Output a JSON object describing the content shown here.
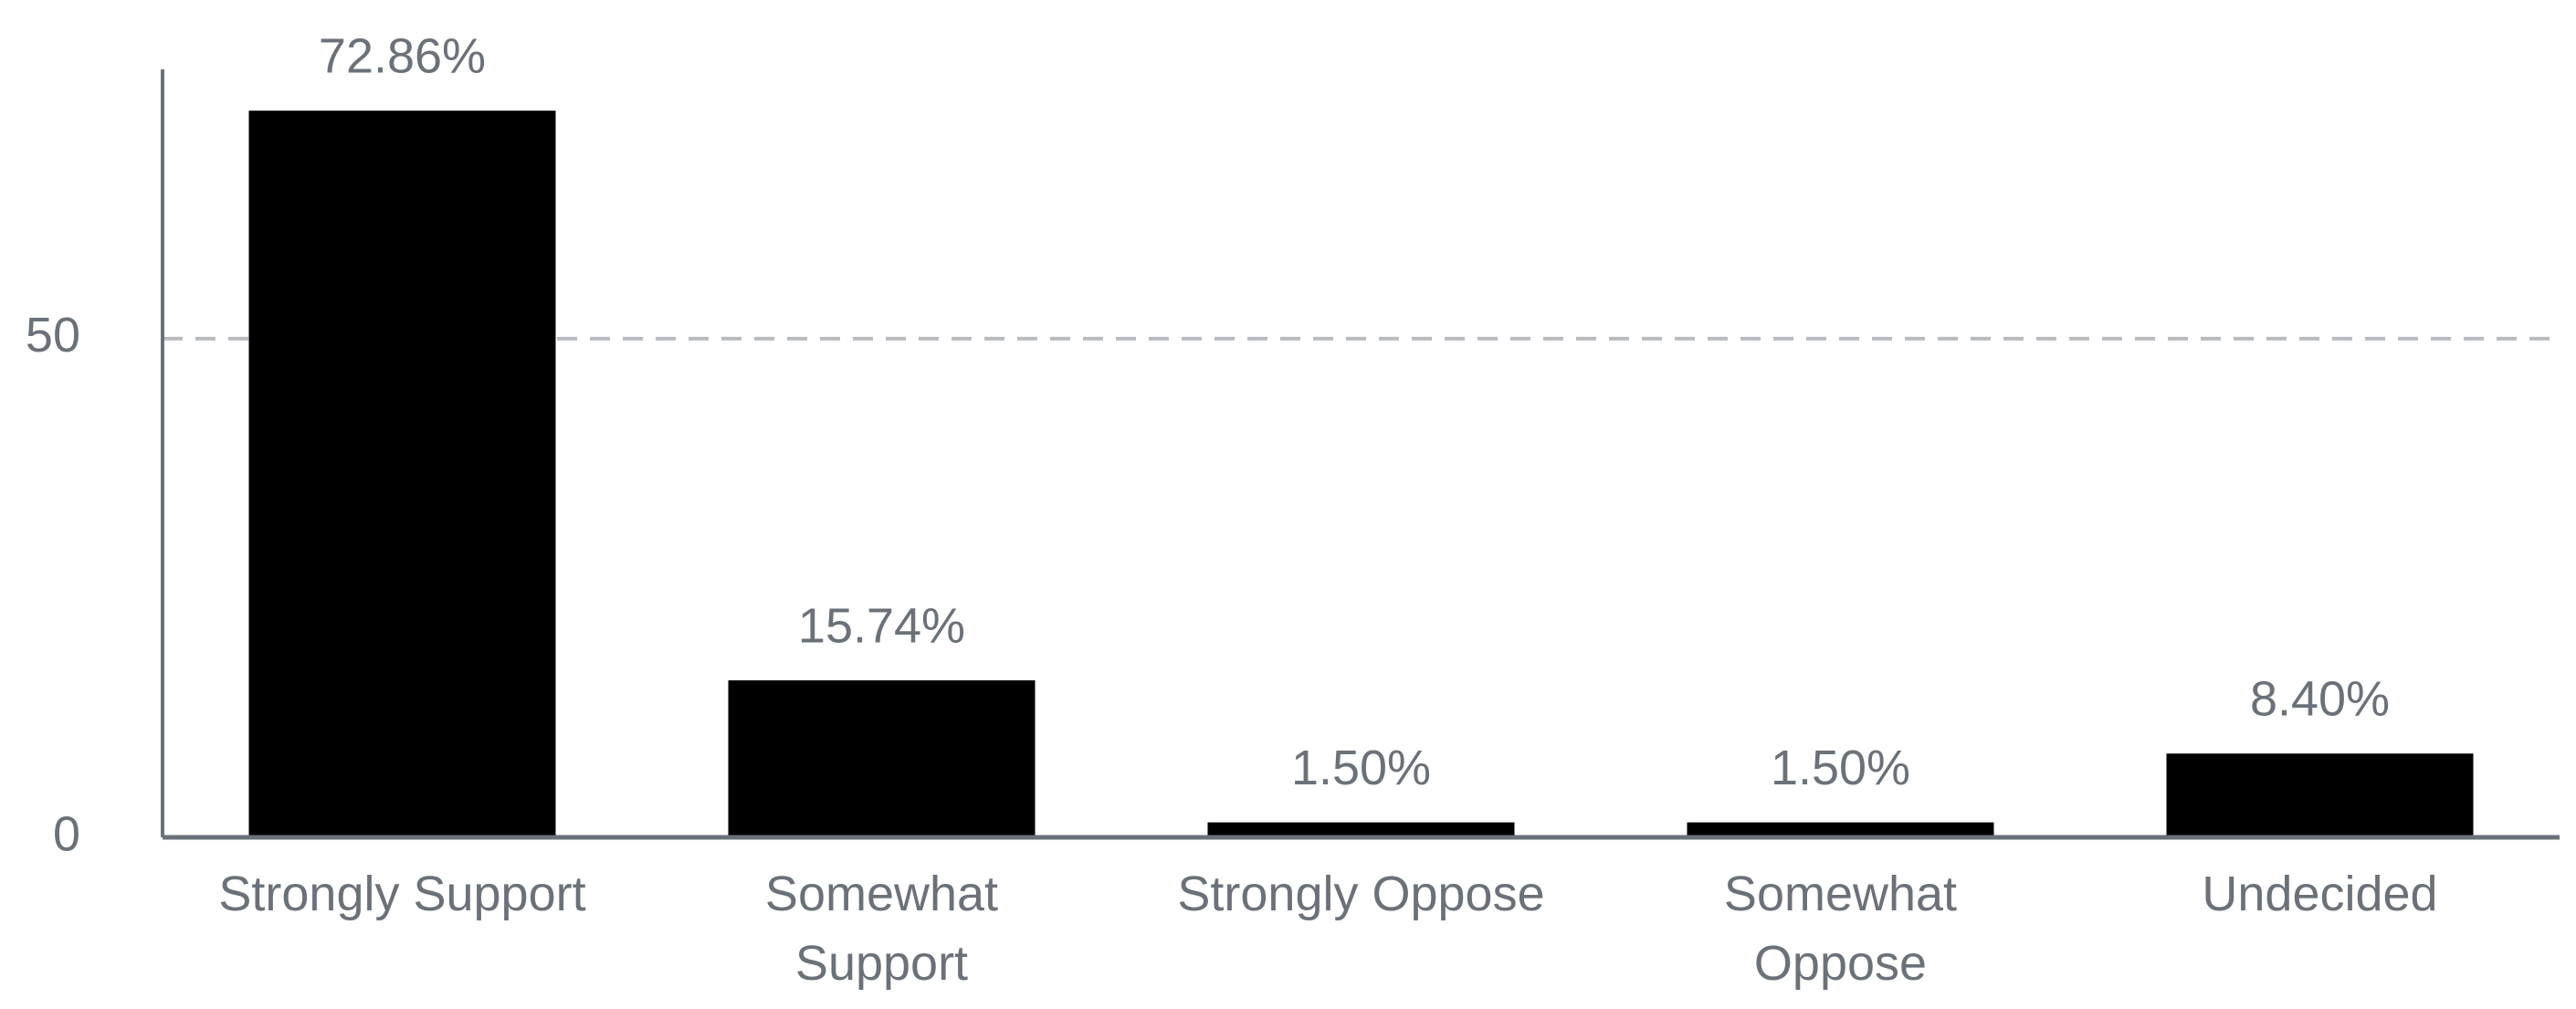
{
  "chart_data": {
    "type": "bar",
    "categories": [
      "Strongly Support",
      "Somewhat Support",
      "Strongly Oppose",
      "Somewhat Oppose",
      "Undecided"
    ],
    "values": [
      72.86,
      15.74,
      1.5,
      1.5,
      8.4
    ],
    "value_labels": [
      "72.86%",
      "15.74%",
      "1.50%",
      "1.50%",
      "8.40%"
    ],
    "color": "#000000",
    "ylim": [
      0,
      77
    ],
    "yticks": [
      0,
      50
    ],
    "grid": true
  }
}
